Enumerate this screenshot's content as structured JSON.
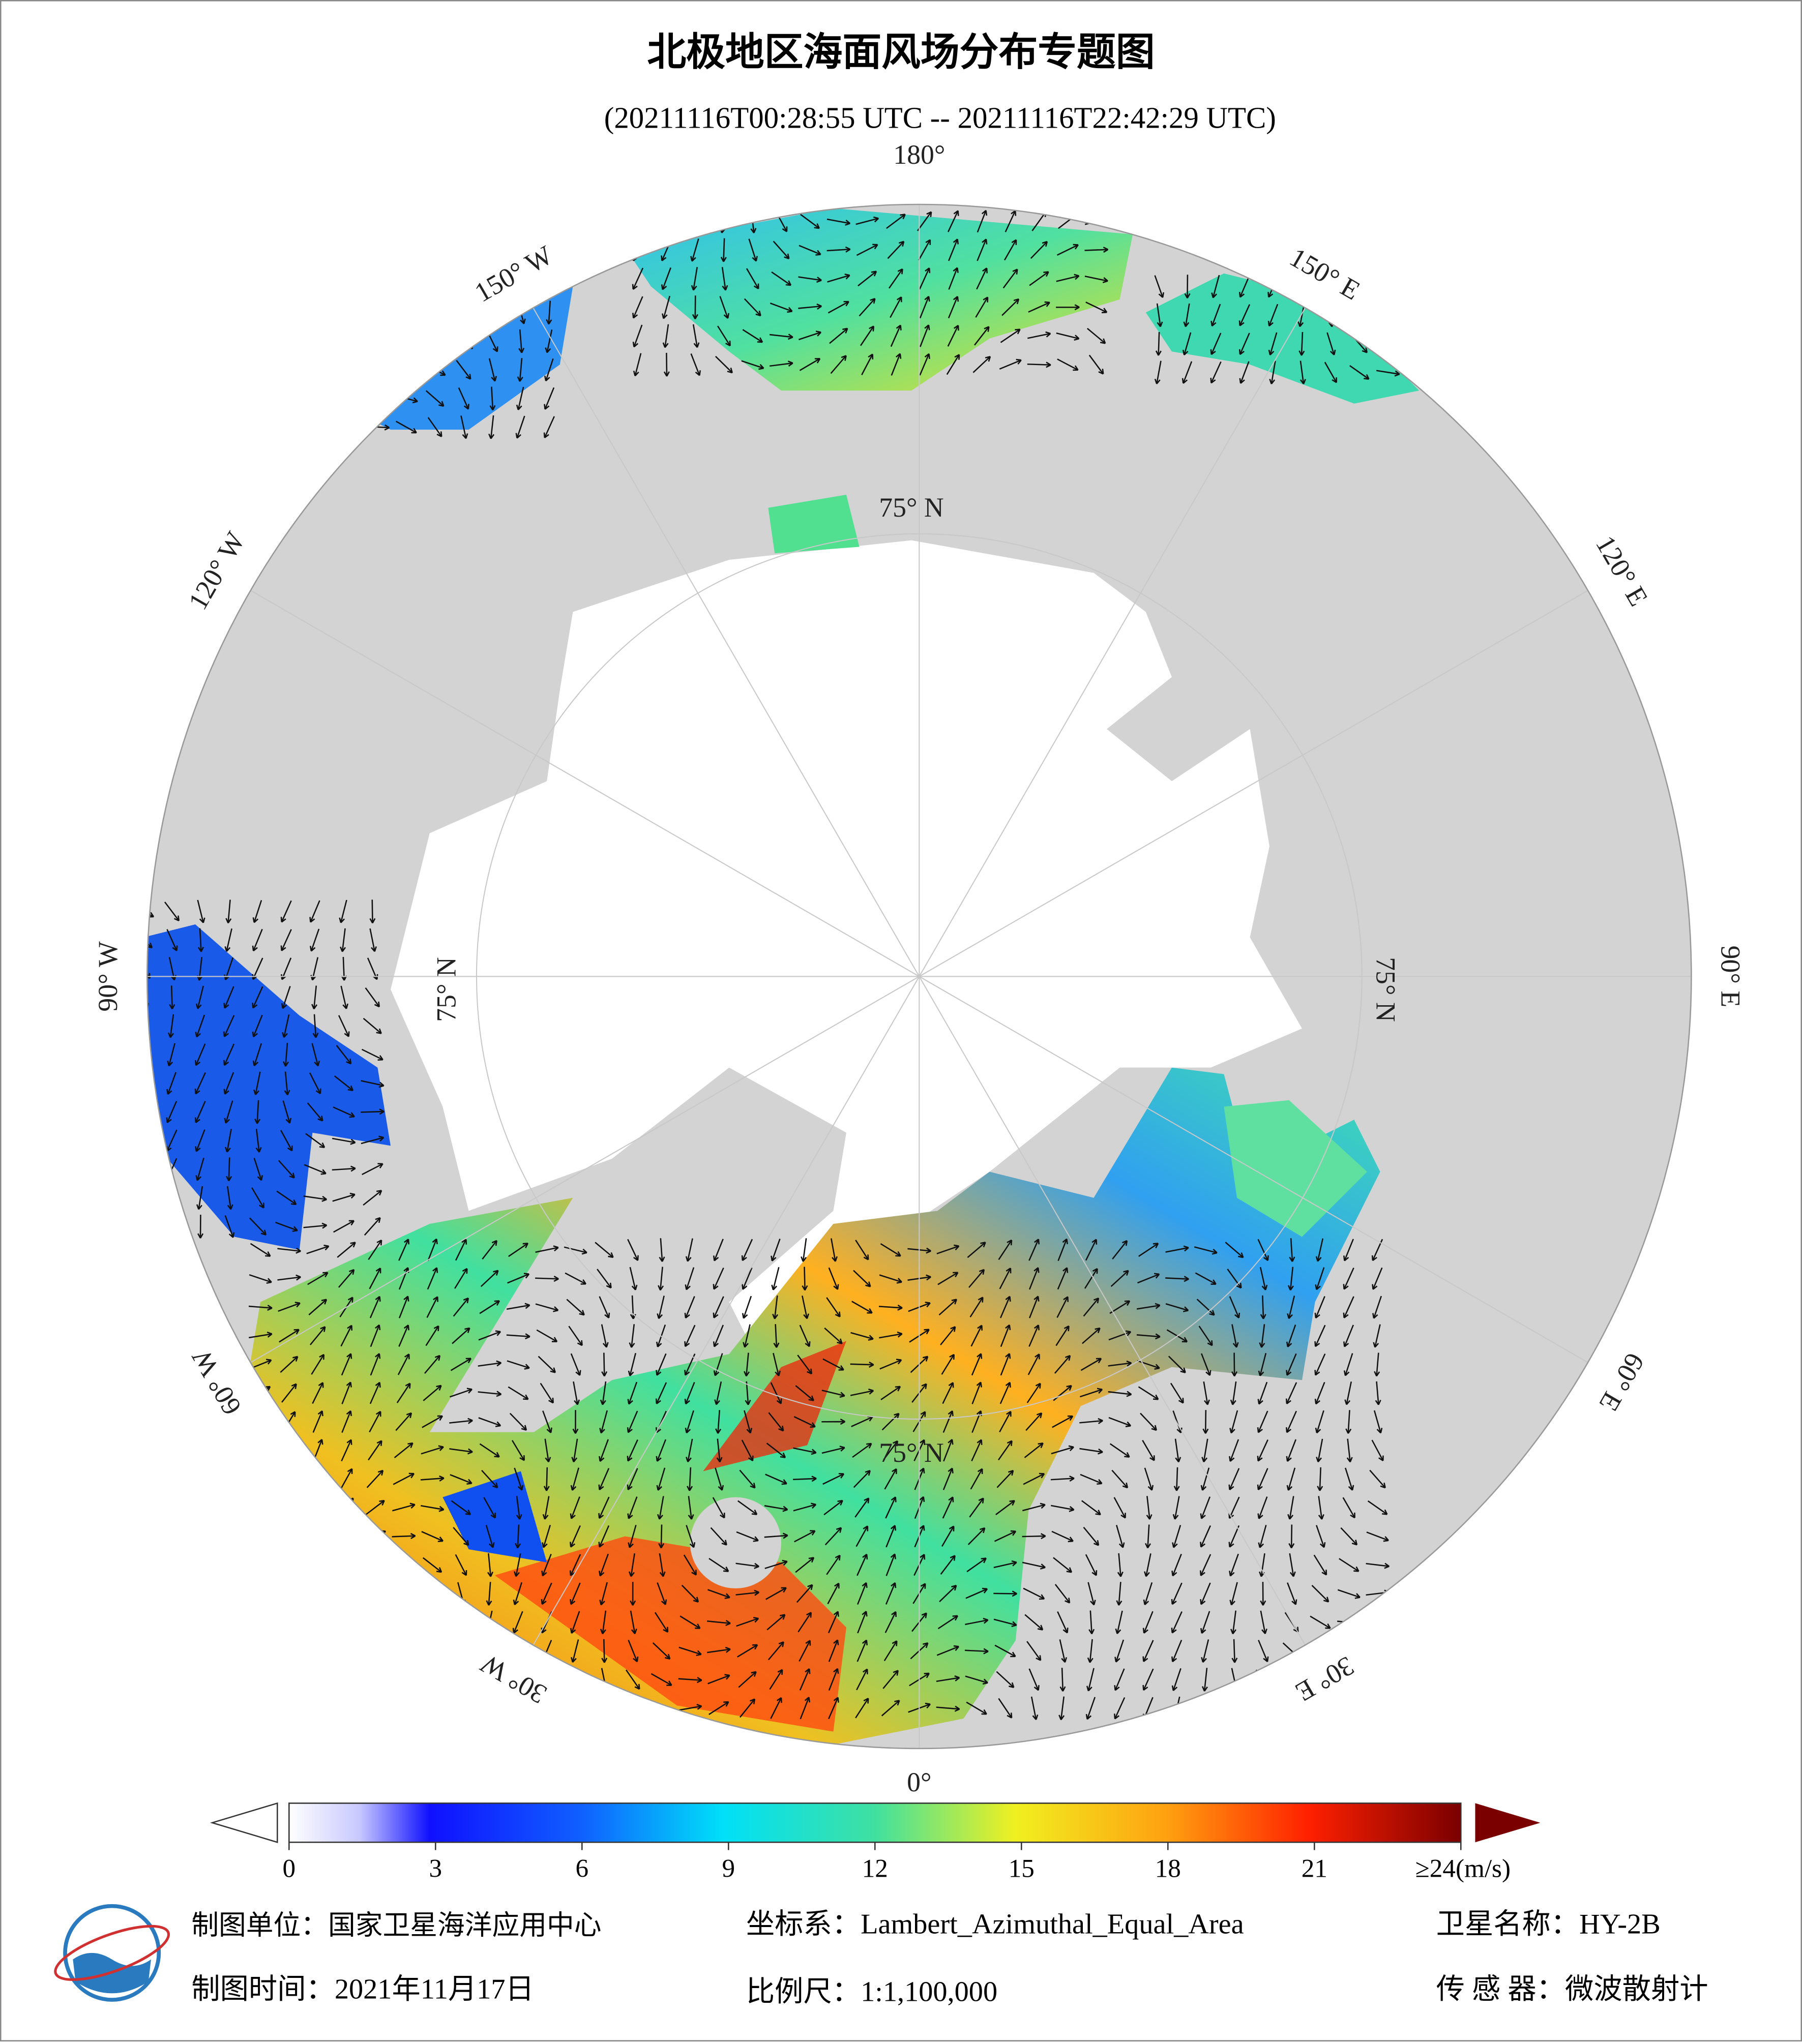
{
  "title": "北极地区海面风场分布专题图",
  "subtitle": "(20211116T00:28:55 UTC -- 20211116T22:42:29 UTC)",
  "map": {
    "longitude_labels": [
      "180°",
      "150° E",
      "120° E",
      "90° E",
      "60° E",
      "30° E",
      "0°",
      "30° W",
      "60° W",
      "90° W",
      "120° W",
      "150° W"
    ],
    "latitude_labels": [
      "75° N",
      "75° N",
      "75° N",
      "75° N"
    ]
  },
  "colorbar": {
    "range": [
      0,
      24
    ],
    "ticks": [
      0,
      3,
      6,
      9,
      12,
      15,
      18,
      21,
      {
        "value": 24,
        "label": "≥24(m/s)"
      }
    ]
  },
  "footer": {
    "unit": "制图单位：国家卫星海洋应用中心",
    "coordinate_system": "坐标系：Lambert_Azimuthal_Equal_Area",
    "satellite": "卫星名称：HY-2B",
    "date": "制图时间：2021年11月17日",
    "scale": "比例尺：1:1,100,000",
    "sensor": "传 感 器：微波散射计"
  }
}
